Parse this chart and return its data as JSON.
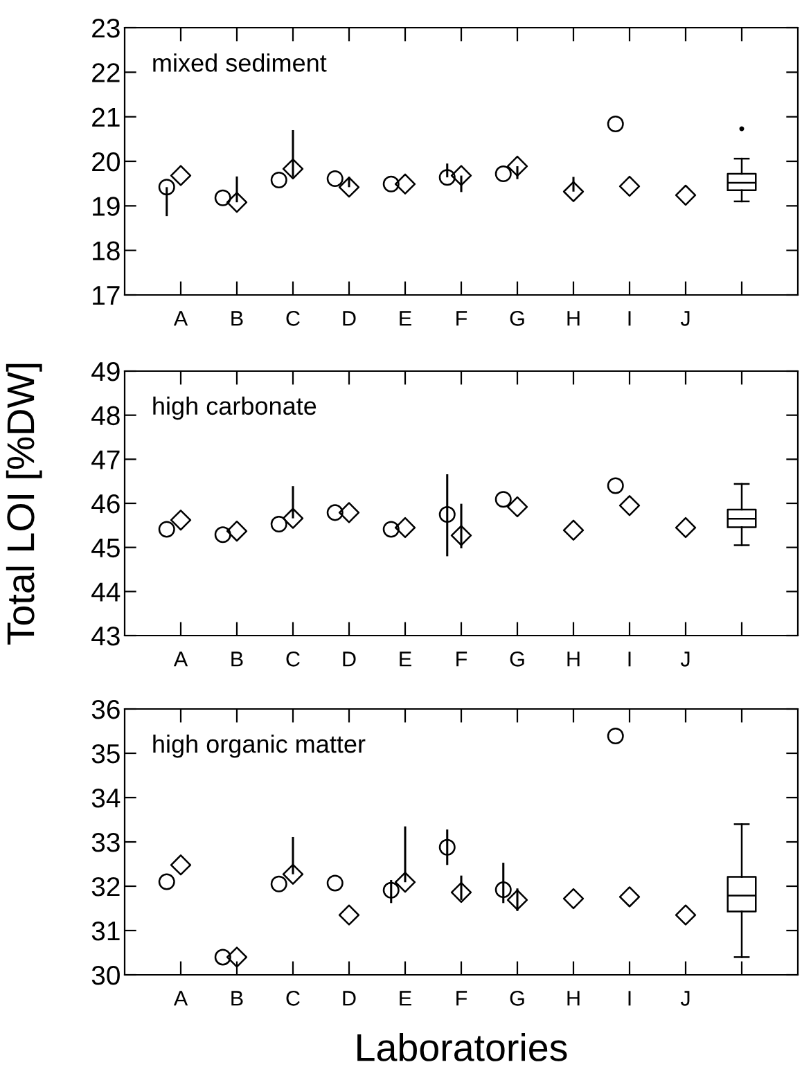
{
  "chart_data": [
    {
      "type": "scatter",
      "title": "mixed sediment",
      "categories": [
        "A",
        "B",
        "C",
        "D",
        "E",
        "F",
        "G",
        "H",
        "I",
        "J",
        null
      ],
      "ylim": [
        17,
        23
      ],
      "yticks": [
        17,
        18,
        19,
        20,
        21,
        22,
        23
      ],
      "series": [
        {
          "marker": "circle",
          "color": "#000000",
          "values": [
            19.42,
            19.18,
            19.58,
            19.61,
            19.49,
            19.64,
            19.72,
            null,
            20.84,
            null,
            null
          ],
          "errors": [
            [
              18.77,
              19.42
            ],
            null,
            null,
            null,
            null,
            [
              19.64,
              19.95
            ],
            null,
            null,
            null,
            null,
            null
          ]
        },
        {
          "marker": "diamond",
          "color": "#000000",
          "values": [
            19.68,
            19.08,
            19.83,
            19.42,
            19.49,
            19.68,
            19.89,
            19.32,
            19.44,
            19.24,
            null
          ],
          "errors": [
            null,
            [
              19.08,
              19.66
            ],
            [
              19.65,
              20.7
            ],
            [
              19.42,
              19.65
            ],
            null,
            [
              19.31,
              19.68
            ],
            [
              19.6,
              19.89
            ],
            [
              19.32,
              19.65
            ],
            null,
            null,
            null
          ]
        },
        {
          "type": "box",
          "color": "#000000",
          "boxes": [
            null,
            null,
            null,
            null,
            null,
            null,
            null,
            null,
            null,
            null,
            {
              "low": 19.1,
              "q1": 19.35,
              "median": 19.52,
              "q3": 19.72,
              "high": 20.06,
              "outliers": [
                20.73
              ]
            }
          ]
        }
      ]
    },
    {
      "type": "scatter",
      "title": "high carbonate",
      "ylabel": "Total LOI [%DW]",
      "categories": [
        "A",
        "B",
        "C",
        "D",
        "E",
        "F",
        "G",
        "H",
        "I",
        "J",
        null
      ],
      "ylim": [
        43,
        49
      ],
      "yticks": [
        43,
        44,
        45,
        46,
        47,
        48,
        49
      ],
      "series": [
        {
          "marker": "circle",
          "color": "#000000",
          "values": [
            45.41,
            45.29,
            45.53,
            45.79,
            45.41,
            45.75,
            46.09,
            null,
            46.4,
            null,
            null
          ],
          "errors": [
            null,
            null,
            null,
            null,
            null,
            [
              44.8,
              46.66
            ],
            null,
            null,
            null,
            null,
            null
          ]
        },
        {
          "marker": "diamond",
          "color": "#000000",
          "values": [
            45.62,
            45.37,
            45.66,
            45.79,
            45.45,
            45.27,
            45.92,
            45.39,
            45.95,
            45.45,
            null
          ],
          "errors": [
            null,
            null,
            [
              45.66,
              46.39
            ],
            null,
            null,
            [
              44.98,
              45.99
            ],
            null,
            null,
            null,
            null,
            null
          ]
        },
        {
          "type": "box",
          "color": "#000000",
          "boxes": [
            null,
            null,
            null,
            null,
            null,
            null,
            null,
            null,
            null,
            null,
            {
              "low": 45.05,
              "q1": 45.46,
              "median": 45.65,
              "q3": 45.86,
              "high": 46.44
            }
          ]
        }
      ]
    },
    {
      "type": "scatter",
      "title": "high organic matter",
      "xlabel": "Laboratories",
      "categories": [
        "A",
        "B",
        "C",
        "D",
        "E",
        "F",
        "G",
        "H",
        "I",
        "J",
        null
      ],
      "ylim": [
        30,
        36
      ],
      "yticks": [
        30,
        31,
        32,
        33,
        34,
        35,
        36
      ],
      "series": [
        {
          "marker": "circle",
          "color": "#000000",
          "values": [
            32.1,
            30.4,
            32.05,
            32.07,
            31.91,
            32.88,
            31.92,
            null,
            35.39,
            null,
            null
          ],
          "errors": [
            null,
            null,
            null,
            null,
            [
              31.62,
              32.14
            ],
            [
              32.48,
              33.28
            ],
            [
              31.62,
              32.53
            ],
            null,
            null,
            null,
            null
          ]
        },
        {
          "marker": "diamond",
          "color": "#000000",
          "values": [
            32.48,
            30.4,
            32.27,
            31.35,
            32.09,
            31.86,
            31.69,
            31.72,
            31.76,
            31.35,
            null
          ],
          "errors": [
            null,
            null,
            [
              32.27,
              33.11
            ],
            null,
            [
              32.09,
              33.35
            ],
            [
              31.69,
              32.24
            ],
            [
              31.44,
              31.95
            ],
            null,
            null,
            null,
            null
          ]
        },
        {
          "type": "box",
          "color": "#000000",
          "boxes": [
            null,
            null,
            null,
            null,
            null,
            null,
            null,
            null,
            null,
            null,
            {
              "low": 30.4,
              "q1": 31.43,
              "median": 31.79,
              "q3": 32.21,
              "high": 33.4
            }
          ]
        }
      ]
    }
  ]
}
